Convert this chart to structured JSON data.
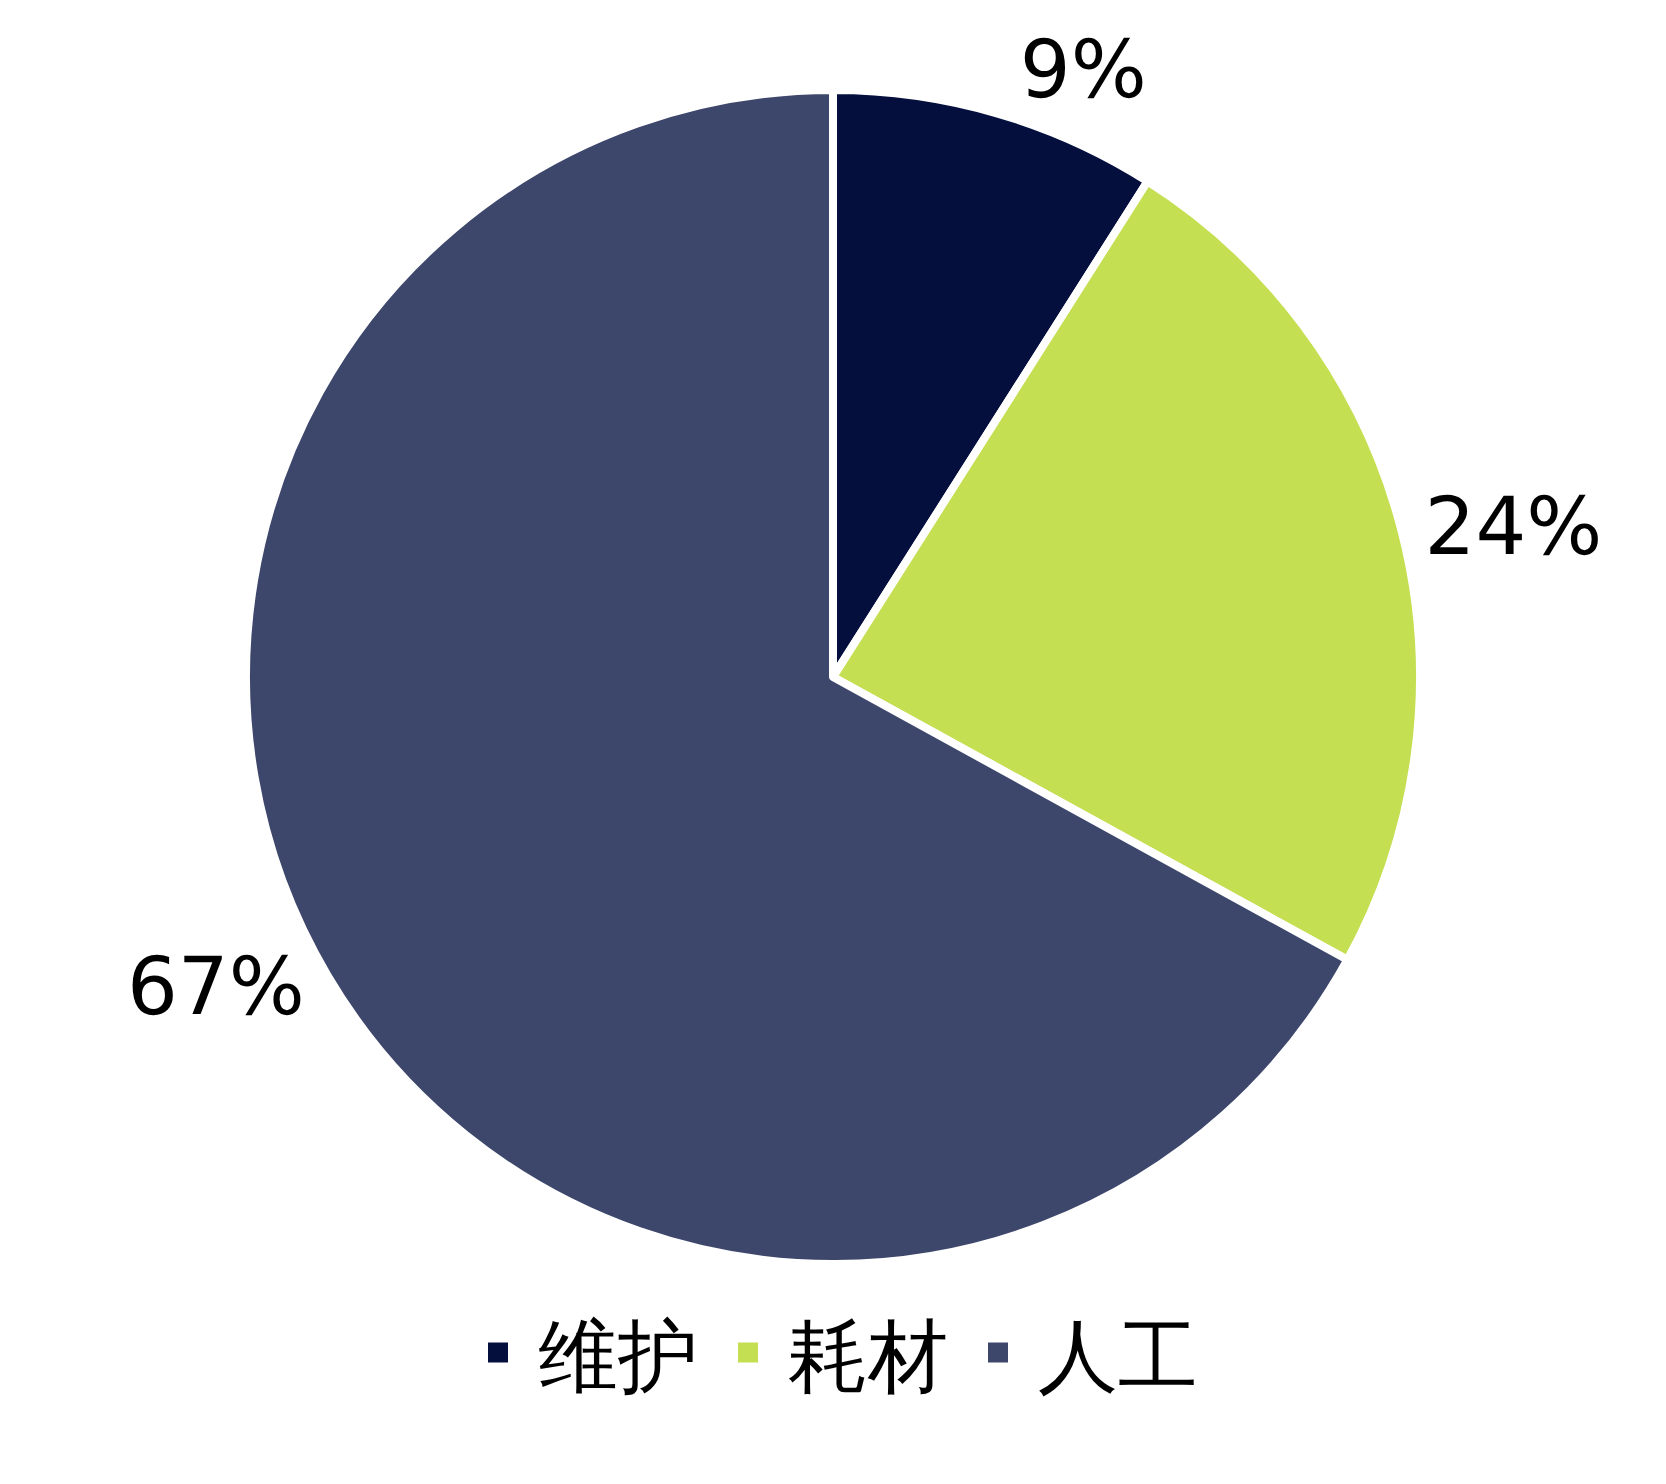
{
  "chart_data": {
    "type": "pie",
    "categories": [
      "维护",
      "耗材",
      "人工"
    ],
    "values": [
      9,
      24,
      67
    ],
    "colors": [
      "#050f3e",
      "#c5df52",
      "#3d466b"
    ],
    "value_labels": [
      "9%",
      "24%",
      "67%"
    ],
    "legend": "bottom"
  }
}
